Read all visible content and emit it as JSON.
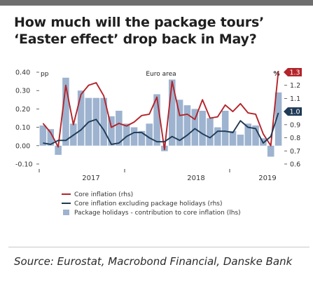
{
  "title": "How much will the package tours’ ‘Easter effect’ drop back in May?",
  "source": "Source: Eurostat, Macrobond Financial, Danske Bank",
  "chart_data": {
    "type": "bar",
    "header_center": "Euro area",
    "left_unit": "pp",
    "right_unit": "%",
    "left_axis": {
      "ylim": [
        -0.1,
        0.4
      ],
      "ticks": [
        "0.40",
        "0.30",
        "0.20",
        "0.10",
        "0.00",
        "-0.10"
      ]
    },
    "right_axis": {
      "ylim": [
        0.6,
        1.3
      ],
      "ticks": [
        "1.2",
        "1.1",
        "1.0",
        "0.9",
        "0.8",
        "0.7",
        "0.6"
      ]
    },
    "x_tick_labels": [
      "2017",
      "2018",
      "2019"
    ],
    "series": [
      {
        "name": "Package holidays - contribution to core inflation (lhs)",
        "kind": "bar",
        "axis": "left",
        "color": "#9db3cf",
        "values": [
          0.11,
          0.09,
          -0.05,
          0.37,
          0.12,
          0.3,
          0.26,
          0.26,
          0.26,
          0.16,
          0.19,
          0.12,
          0.1,
          0.08,
          0.12,
          0.28,
          -0.03,
          0.36,
          0.25,
          0.22,
          0.2,
          0.19,
          0.15,
          0.1,
          0.19,
          0.08,
          0.06,
          0.12,
          0.11,
          0.04,
          -0.06,
          0.29
        ]
      },
      {
        "name": "Core inflation (rhs)",
        "kind": "line",
        "axis": "right",
        "color": "#b3242b",
        "values": [
          0.91,
          0.84,
          0.73,
          1.2,
          0.9,
          1.13,
          1.2,
          1.22,
          1.12,
          0.88,
          0.91,
          0.89,
          0.92,
          0.97,
          0.98,
          1.11,
          0.71,
          1.23,
          0.97,
          0.98,
          0.94,
          1.09,
          0.95,
          0.96,
          1.05,
          1.0,
          1.06,
          0.99,
          0.98,
          0.83,
          0.74,
          1.31
        ]
      },
      {
        "name": "Core inflation excluding package holidays (rhs)",
        "kind": "line",
        "axis": "right",
        "color": "#1e3a56",
        "values": [
          0.76,
          0.75,
          0.78,
          0.78,
          0.82,
          0.86,
          0.92,
          0.94,
          0.86,
          0.75,
          0.76,
          0.81,
          0.84,
          0.84,
          0.8,
          0.77,
          0.77,
          0.81,
          0.78,
          0.82,
          0.87,
          0.83,
          0.8,
          0.85,
          0.85,
          0.84,
          0.93,
          0.88,
          0.87,
          0.76,
          0.81,
          0.99
        ]
      }
    ],
    "right_labels": [
      {
        "text": "1.3",
        "value": 1.3,
        "color": "#b3242b"
      },
      {
        "text": "1.0",
        "value": 1.0,
        "color": "#1e3a56"
      }
    ],
    "legend": [
      {
        "label": "Core inflation (rhs)",
        "kind": "line",
        "color": "#b3242b"
      },
      {
        "label": "Core inflation excluding package holidays (rhs)",
        "kind": "line",
        "color": "#1e3a56"
      },
      {
        "label": "Package holidays - contribution to core inflation (lhs)",
        "kind": "box",
        "color": "#9db3cf"
      }
    ]
  }
}
